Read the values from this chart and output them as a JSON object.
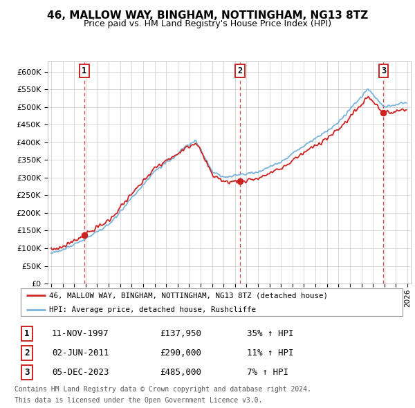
{
  "title": "46, MALLOW WAY, BINGHAM, NOTTINGHAM, NG13 8TZ",
  "subtitle": "Price paid vs. HM Land Registry's House Price Index (HPI)",
  "legend_line1": "46, MALLOW WAY, BINGHAM, NOTTINGHAM, NG13 8TZ (detached house)",
  "legend_line2": "HPI: Average price, detached house, Rushcliffe",
  "transaction1_date": "11-NOV-1997",
  "transaction1_price": 137950,
  "transaction1_price_str": "£137,950",
  "transaction1_pct": "35% ↑ HPI",
  "transaction1_x": 1997.875,
  "transaction2_date": "02-JUN-2011",
  "transaction2_price": 290000,
  "transaction2_price_str": "£290,000",
  "transaction2_pct": "11% ↑ HPI",
  "transaction2_x": 2011.417,
  "transaction3_date": "05-DEC-2023",
  "transaction3_price": 485000,
  "transaction3_price_str": "£485,000",
  "transaction3_pct": "7% ↑ HPI",
  "transaction3_x": 2023.917,
  "footer1": "Contains HM Land Registry data © Crown copyright and database right 2024.",
  "footer2": "This data is licensed under the Open Government Licence v3.0.",
  "hpi_color": "#7ab3d9",
  "price_color": "#cc2222",
  "background_color": "#ffffff",
  "grid_color": "#cccccc",
  "ytick_labels": [
    "£0",
    "£50K",
    "£100K",
    "£150K",
    "£200K",
    "£250K",
    "£300K",
    "£350K",
    "£400K",
    "£450K",
    "£500K",
    "£550K",
    "£600K"
  ],
  "ytick_values": [
    0,
    50,
    100,
    150,
    200,
    250,
    300,
    350,
    400,
    450,
    500,
    550,
    600
  ],
  "xlim_start": 1994.7,
  "xlim_end": 2026.3
}
